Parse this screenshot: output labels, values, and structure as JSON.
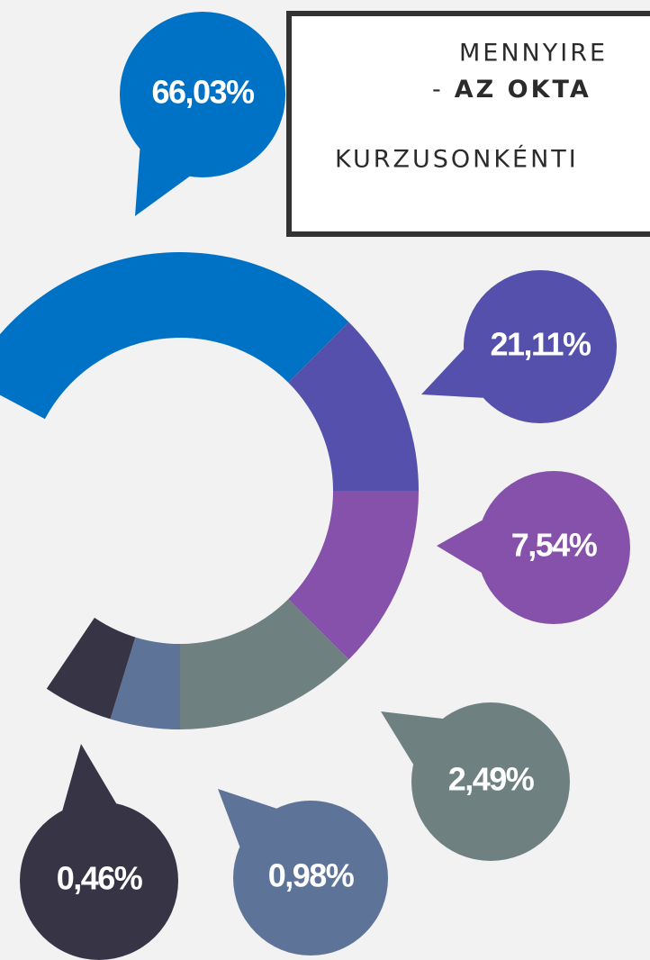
{
  "title": {
    "line1": "MENNYIRE",
    "line2_prefix": "-",
    "line2": "AZ OKTA",
    "line3": "KURZUSONKÉNTI"
  },
  "bubbles": [
    {
      "label": "66,03%",
      "color": "#0072c6"
    },
    {
      "label": "21,11%",
      "color": "#5450ab"
    },
    {
      "label": "7,54%",
      "color": "#8651aa"
    },
    {
      "label": "2,49%",
      "color": "#6f8080"
    },
    {
      "label": "0,98%",
      "color": "#5d7398"
    },
    {
      "label": "0,46%",
      "color": "#373446"
    }
  ]
}
